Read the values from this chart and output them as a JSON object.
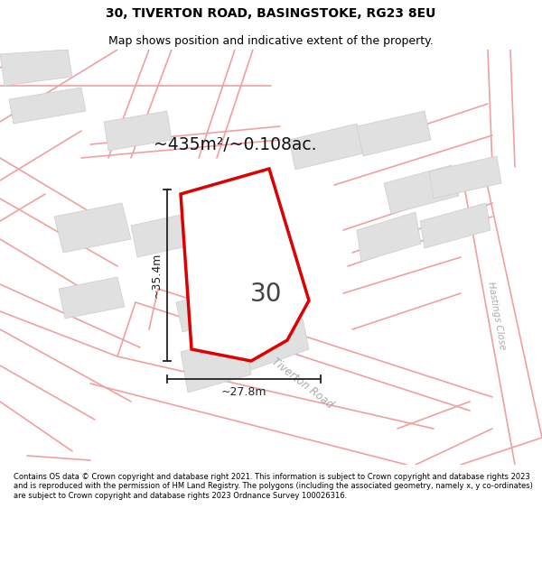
{
  "title_line1": "30, TIVERTON ROAD, BASINGSTOKE, RG23 8EU",
  "title_line2": "Map shows position and indicative extent of the property.",
  "area_label": "~435m²/~0.108ac.",
  "property_number": "30",
  "dim_height": "~35.4m",
  "dim_width": "~27.8m",
  "road_label1": "Tiverton Road",
  "road_label2": "Hastings Close",
  "footer_text": "Contains OS data © Crown copyright and database right 2021. This information is subject to Crown copyright and database rights 2023 and is reproduced with the permission of HM Land Registry. The polygons (including the associated geometry, namely x, y co-ordinates) are subject to Crown copyright and database rights 2023 Ordnance Survey 100026316.",
  "bg_color": "#ffffff",
  "map_bg": "#ffffff",
  "plot_outline_color": "#dd0000",
  "road_line_color": "#f0a0a0",
  "building_color": "#e0e0e0",
  "building_edge_color": "#cccccc",
  "dim_color": "#222222",
  "title_color": "#000000",
  "footer_color": "#000000",
  "area_label_fontsize": 14,
  "title_fontsize": 10,
  "subtitle_fontsize": 9
}
